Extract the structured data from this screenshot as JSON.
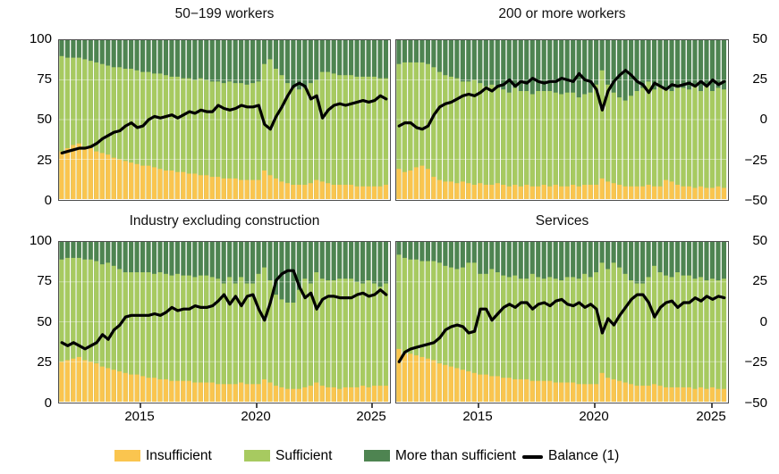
{
  "figure": {
    "colors": {
      "insufficient": "#FAC54F",
      "sufficient": "#A7CA60",
      "more_than_sufficient": "#4E8451",
      "balance_line": "#000000",
      "gridline": "rgba(255,255,255,0.4)",
      "panel_border": "#4d4d4d"
    },
    "axes": {
      "left_ticks": [
        "100",
        "75",
        "50",
        "25",
        "0"
      ],
      "right_ticks": [
        "50",
        "25",
        "0",
        "−25",
        "−50"
      ],
      "x_ticks": [
        "2015",
        "2020",
        "2025"
      ]
    },
    "legend": [
      {
        "label": "Insufficient",
        "color": "#FAC54F",
        "type": "box"
      },
      {
        "label": "Sufficient",
        "color": "#A7CA60",
        "type": "box"
      },
      {
        "label": "More than sufficient",
        "color": "#4E8451",
        "type": "box"
      },
      {
        "label": "Balance (1)",
        "color": "#000000",
        "type": "line"
      }
    ]
  },
  "chart_data": [
    {
      "type": "bar",
      "subtype": "stacked_bar_with_line",
      "title": "50−199 workers",
      "x_start": "2011-Q3",
      "x_end": "2025-Q3",
      "frequency": "quarterly",
      "x_tick_labels": [
        "2015",
        "2020",
        "2025"
      ],
      "x_tick_indices": [
        14,
        34,
        54
      ],
      "left_ylim": [
        0,
        100
      ],
      "right_ylim": [
        -50,
        50
      ],
      "insufficient": [
        30,
        32,
        34,
        35,
        33,
        32,
        30,
        29,
        28,
        26,
        25,
        24,
        23,
        22,
        21,
        21,
        20,
        19,
        18,
        18,
        17,
        17,
        16,
        16,
        15,
        15,
        14,
        14,
        13,
        13,
        13,
        12,
        12,
        12,
        12,
        18,
        15,
        13,
        11,
        10,
        9,
        9,
        9,
        10,
        12,
        11,
        10,
        9,
        9,
        9,
        9,
        8,
        8,
        8,
        8,
        8,
        9
      ],
      "sufficient": [
        60,
        57,
        55,
        54,
        55,
        55,
        56,
        56,
        56,
        57,
        58,
        58,
        59,
        59,
        59,
        59,
        59,
        60,
        60,
        59,
        60,
        59,
        60,
        59,
        61,
        60,
        60,
        60,
        60,
        61,
        60,
        61,
        60,
        61,
        62,
        67,
        73,
        69,
        67,
        63,
        61,
        60,
        61,
        63,
        63,
        69,
        70,
        70,
        69,
        69,
        69,
        69,
        69,
        69,
        69,
        68,
        67
      ],
      "more_than_sufficient": [
        10,
        11,
        11,
        11,
        12,
        13,
        14,
        15,
        16,
        17,
        17,
        18,
        18,
        19,
        20,
        20,
        21,
        21,
        22,
        23,
        23,
        24,
        24,
        25,
        24,
        25,
        26,
        26,
        27,
        26,
        27,
        27,
        28,
        27,
        26,
        15,
        12,
        18,
        22,
        27,
        30,
        31,
        30,
        27,
        25,
        20,
        20,
        21,
        22,
        22,
        22,
        23,
        23,
        23,
        23,
        24,
        24
      ],
      "balance": [
        -21,
        -20,
        -19,
        -18,
        -18,
        -17,
        -15,
        -12,
        -10,
        -8,
        -7,
        -4,
        -2,
        -5,
        -4,
        0,
        2,
        1,
        2,
        3,
        1,
        3,
        5,
        4,
        6,
        5,
        5,
        9,
        7,
        6,
        7,
        9,
        8,
        8,
        9,
        -3,
        -6,
        2,
        8,
        15,
        21,
        23,
        21,
        13,
        15,
        1,
        6,
        9,
        10,
        9,
        10,
        11,
        12,
        11,
        12,
        15,
        13
      ]
    },
    {
      "type": "bar",
      "subtype": "stacked_bar_with_line",
      "title": "200 or more workers",
      "x_start": "2011-Q3",
      "x_end": "2025-Q3",
      "frequency": "quarterly",
      "x_tick_labels": [
        "2015",
        "2020",
        "2025"
      ],
      "x_tick_indices": [
        14,
        34,
        54
      ],
      "left_ylim": [
        0,
        100
      ],
      "right_ylim": [
        -50,
        50
      ],
      "insufficient": [
        19,
        17,
        18,
        20,
        21,
        19,
        14,
        12,
        11,
        11,
        10,
        11,
        10,
        9,
        10,
        9,
        9,
        10,
        9,
        8,
        9,
        8,
        9,
        8,
        8,
        9,
        8,
        9,
        8,
        8,
        9,
        8,
        9,
        9,
        9,
        13,
        11,
        10,
        9,
        8,
        8,
        8,
        8,
        9,
        8,
        8,
        12,
        11,
        9,
        8,
        8,
        7,
        8,
        7,
        7,
        8,
        7
      ],
      "sufficient": [
        66,
        69,
        68,
        66,
        65,
        66,
        69,
        68,
        67,
        66,
        66,
        63,
        64,
        66,
        63,
        62,
        63,
        60,
        60,
        59,
        61,
        60,
        59,
        58,
        60,
        59,
        60,
        58,
        58,
        59,
        58,
        56,
        57,
        58,
        63,
        68,
        61,
        57,
        55,
        54,
        57,
        60,
        62,
        65,
        61,
        63,
        58,
        57,
        61,
        62,
        61,
        65,
        60,
        65,
        61,
        62,
        62
      ],
      "more_than_sufficient": [
        15,
        14,
        14,
        14,
        14,
        15,
        17,
        20,
        22,
        23,
        24,
        26,
        26,
        25,
        27,
        29,
        28,
        30,
        31,
        33,
        30,
        32,
        32,
        34,
        32,
        32,
        32,
        33,
        34,
        33,
        33,
        36,
        34,
        33,
        28,
        19,
        28,
        33,
        36,
        38,
        35,
        32,
        30,
        26,
        31,
        29,
        30,
        32,
        30,
        30,
        31,
        28,
        32,
        28,
        32,
        30,
        31
      ],
      "balance": [
        -4,
        -2,
        -2,
        -5,
        -6,
        -4,
        3,
        8,
        10,
        11,
        13,
        15,
        16,
        15,
        17,
        20,
        18,
        21,
        22,
        25,
        21,
        24,
        23,
        26,
        24,
        23,
        24,
        24,
        26,
        25,
        24,
        29,
        25,
        24,
        19,
        6,
        18,
        24,
        28,
        31,
        28,
        24,
        22,
        17,
        23,
        21,
        19,
        22,
        21,
        22,
        23,
        21,
        24,
        21,
        25,
        22,
        24
      ]
    },
    {
      "type": "bar",
      "subtype": "stacked_bar_with_line",
      "title": "Industry excluding construction",
      "x_start": "2011-Q3",
      "x_end": "2025-Q3",
      "frequency": "quarterly",
      "x_tick_labels": [
        "2015",
        "2020",
        "2025"
      ],
      "x_tick_indices": [
        14,
        34,
        54
      ],
      "left_ylim": [
        0,
        100
      ],
      "right_ylim": [
        -50,
        50
      ],
      "insufficient": [
        25,
        26,
        27,
        28,
        26,
        25,
        24,
        22,
        21,
        20,
        19,
        18,
        17,
        17,
        16,
        15,
        15,
        14,
        14,
        13,
        13,
        13,
        13,
        12,
        12,
        12,
        12,
        11,
        11,
        11,
        11,
        12,
        11,
        11,
        11,
        14,
        12,
        10,
        9,
        8,
        8,
        8,
        9,
        10,
        12,
        10,
        9,
        9,
        8,
        9,
        9,
        9,
        10,
        9,
        10,
        10,
        10
      ],
      "sufficient": [
        64,
        64,
        63,
        62,
        63,
        64,
        64,
        64,
        66,
        65,
        64,
        63,
        64,
        64,
        65,
        66,
        65,
        67,
        66,
        66,
        67,
        66,
        66,
        66,
        67,
        67,
        66,
        66,
        63,
        67,
        63,
        66,
        63,
        63,
        69,
        70,
        64,
        57,
        55,
        54,
        54,
        62,
        68,
        64,
        69,
        67,
        67,
        67,
        69,
        68,
        68,
        66,
        64,
        67,
        64,
        62,
        64
      ],
      "more_than_sufficient": [
        11,
        10,
        10,
        10,
        11,
        11,
        12,
        14,
        13,
        15,
        17,
        19,
        19,
        19,
        19,
        19,
        20,
        19,
        20,
        21,
        20,
        21,
        21,
        22,
        21,
        21,
        22,
        23,
        26,
        22,
        26,
        22,
        26,
        26,
        20,
        16,
        24,
        33,
        36,
        38,
        38,
        30,
        23,
        26,
        19,
        23,
        24,
        24,
        23,
        23,
        23,
        25,
        26,
        24,
        26,
        28,
        26
      ],
      "balance": [
        -13,
        -15,
        -13,
        -15,
        -17,
        -15,
        -13,
        -8,
        -11,
        -5,
        -2,
        3,
        4,
        4,
        4,
        4,
        5,
        4,
        6,
        9,
        7,
        8,
        8,
        10,
        9,
        9,
        10,
        13,
        17,
        11,
        16,
        10,
        16,
        17,
        8,
        1,
        12,
        26,
        30,
        32,
        32,
        22,
        15,
        18,
        8,
        14,
        16,
        16,
        15,
        15,
        15,
        17,
        18,
        16,
        17,
        20,
        17
      ]
    },
    {
      "type": "bar",
      "subtype": "stacked_bar_with_line",
      "title": "Services",
      "x_start": "2011-Q3",
      "x_end": "2025-Q3",
      "frequency": "quarterly",
      "x_tick_labels": [
        "2015",
        "2020",
        "2025"
      ],
      "x_tick_indices": [
        14,
        34,
        54
      ],
      "left_ylim": [
        0,
        100
      ],
      "right_ylim": [
        -50,
        50
      ],
      "insufficient": [
        33,
        30,
        30,
        29,
        28,
        27,
        26,
        24,
        23,
        22,
        21,
        20,
        19,
        18,
        17,
        17,
        16,
        16,
        15,
        15,
        14,
        14,
        14,
        13,
        13,
        13,
        13,
        12,
        12,
        12,
        12,
        11,
        11,
        11,
        11,
        18,
        15,
        14,
        13,
        12,
        11,
        10,
        10,
        10,
        11,
        10,
        9,
        9,
        9,
        9,
        9,
        8,
        9,
        8,
        9,
        8,
        8
      ],
      "sufficient": [
        59,
        60,
        59,
        60,
        60,
        61,
        62,
        63,
        62,
        62,
        62,
        64,
        68,
        69,
        63,
        63,
        67,
        65,
        64,
        63,
        65,
        63,
        63,
        67,
        65,
        64,
        65,
        65,
        64,
        66,
        66,
        66,
        69,
        67,
        70,
        69,
        68,
        73,
        71,
        68,
        65,
        64,
        64,
        68,
        74,
        71,
        70,
        69,
        72,
        70,
        70,
        69,
        69,
        68,
        68,
        68,
        69
      ],
      "more_than_sufficient": [
        8,
        10,
        11,
        11,
        12,
        12,
        12,
        13,
        15,
        16,
        17,
        16,
        13,
        13,
        20,
        20,
        17,
        19,
        21,
        22,
        21,
        23,
        23,
        20,
        22,
        23,
        22,
        23,
        24,
        22,
        22,
        23,
        20,
        22,
        19,
        13,
        17,
        13,
        16,
        20,
        24,
        26,
        26,
        22,
        15,
        19,
        21,
        22,
        19,
        21,
        21,
        23,
        22,
        24,
        23,
        24,
        23
      ],
      "balance": [
        -25,
        -19,
        -17,
        -16,
        -15,
        -14,
        -13,
        -10,
        -5,
        -3,
        -2,
        -3,
        -7,
        -6,
        8,
        8,
        1,
        5,
        9,
        11,
        9,
        12,
        12,
        8,
        11,
        12,
        10,
        13,
        14,
        11,
        10,
        12,
        9,
        11,
        8,
        -7,
        2,
        -2,
        4,
        9,
        14,
        17,
        17,
        12,
        3,
        9,
        12,
        13,
        9,
        12,
        12,
        15,
        13,
        16,
        14,
        16,
        15
      ]
    }
  ]
}
